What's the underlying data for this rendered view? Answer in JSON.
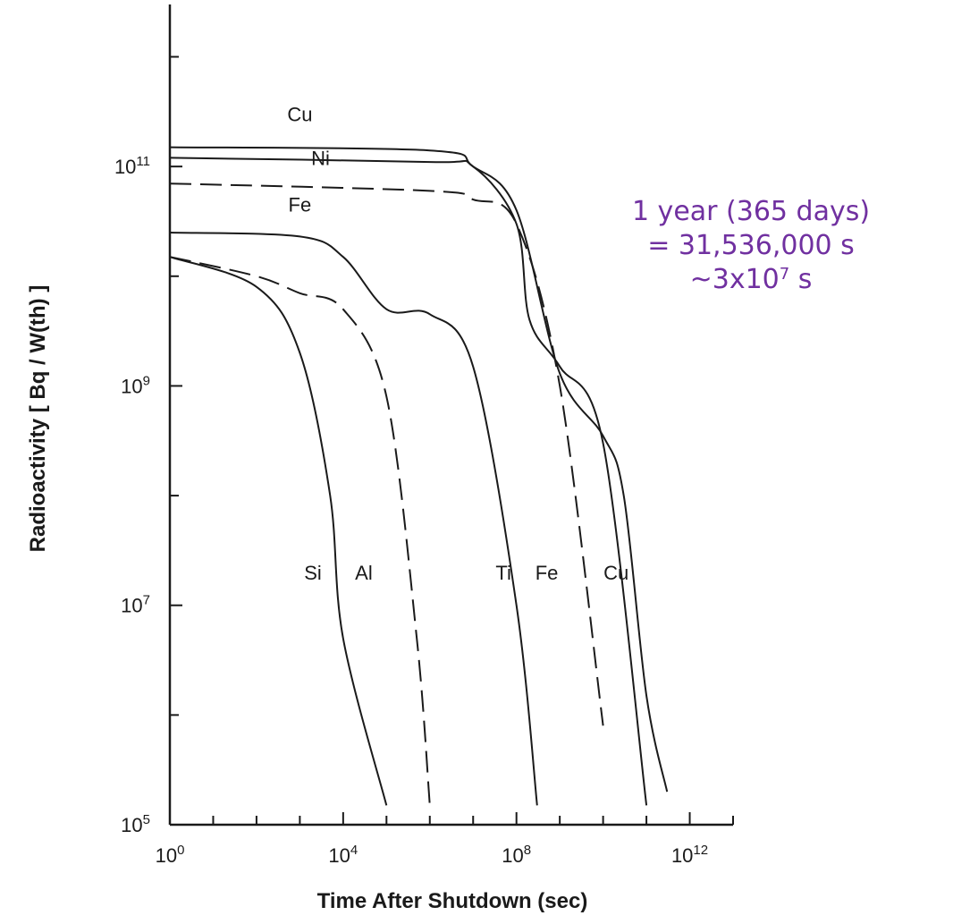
{
  "chart_data": {
    "type": "line",
    "xlabel": "Time After Shutdown (sec)",
    "ylabel": "Radioactivity [ Bq / W(th) ]",
    "x_scale": "log",
    "y_scale": "log",
    "xlim": [
      1,
      10000000000000
    ],
    "ylim": [
      100000,
      3000000000000
    ],
    "x_ticks": [
      {
        "value": 1,
        "label": "10",
        "exp": "0"
      },
      {
        "value": 10000,
        "label": "10",
        "exp": "4"
      },
      {
        "value": 100000000,
        "label": "10",
        "exp": "8"
      },
      {
        "value": 1000000000000,
        "label": "10",
        "exp": "12"
      }
    ],
    "y_ticks": [
      {
        "value": 100000,
        "label": "10",
        "exp": "5"
      },
      {
        "value": 10000000,
        "label": "10",
        "exp": "7"
      },
      {
        "value": 1000000000,
        "label": "10",
        "exp": "9"
      },
      {
        "value": 100000000000,
        "label": "10",
        "exp": "11"
      }
    ],
    "grid": false,
    "legend": "inline labels on curves",
    "series": [
      {
        "name": "Cu",
        "style": "solid",
        "x": [
          1,
          1000000,
          10000000,
          100000000,
          1000000000,
          10000000000,
          30000000000,
          100000000000,
          300000000000
        ],
        "y": [
          150000000000,
          140000000000,
          100000000000,
          40000000000,
          1300000000,
          350000000,
          100000000,
          1500000,
          200000
        ]
      },
      {
        "name": "Ni",
        "style": "solid",
        "x": [
          1,
          1000000,
          10000000,
          100000000,
          200000000,
          1000000000,
          10000000000,
          100000000000
        ],
        "y": [
          120000000000,
          110000000000,
          100000000000,
          30000000000,
          4000000000,
          1500000000,
          300000000,
          150000
        ]
      },
      {
        "name": "Fe",
        "style": "dashed",
        "x": [
          1,
          1000000,
          10000000,
          100000000,
          1000000000,
          10000000000
        ],
        "y": [
          70000000000,
          60000000000,
          50000000000,
          30000000000,
          1000000000,
          800000
        ]
      },
      {
        "name": "Ti",
        "style": "solid",
        "x": [
          1,
          1000,
          10000,
          100000,
          1000000,
          10000000,
          100000000,
          300000000
        ],
        "y": [
          25000000000,
          23000000000,
          15000000000,
          5000000000,
          4500000000,
          1500000000,
          10000000,
          150000
        ]
      },
      {
        "name": "Al",
        "style": "dashed",
        "x": [
          1,
          100,
          1000,
          10000,
          100000,
          500000,
          1000000
        ],
        "y": [
          15000000000,
          10000000000,
          7000000000,
          5000000000,
          800000000,
          5000000,
          150000
        ]
      },
      {
        "name": "Si",
        "style": "solid",
        "x": [
          1,
          100,
          1000,
          5000,
          10000,
          100000
        ],
        "y": [
          15000000000,
          8000000000,
          2000000000,
          100000000,
          5000000,
          150000
        ]
      }
    ],
    "labels": [
      {
        "text": "Cu",
        "x": 1000,
        "y": 300000000000
      },
      {
        "text": "Ni",
        "x": 3000,
        "y": 120000000000
      },
      {
        "text": "Fe",
        "x": 1000,
        "y": 45000000000
      },
      {
        "text": "Si",
        "x": 2000,
        "y": 20000000
      },
      {
        "text": "Al",
        "x": 30000,
        "y": 20000000
      },
      {
        "text": "Ti",
        "x": 50000000,
        "y": 20000000
      },
      {
        "text": "Fe",
        "x": 500000000,
        "y": 20000000
      },
      {
        "text": "Cu",
        "x": 20000000000,
        "y": 20000000
      }
    ]
  },
  "annotation": {
    "line1": "1 year (365 days)",
    "line2": "= 31,536,000 s",
    "line3_prefix": "~3x10",
    "line3_exp": "7",
    "line3_suffix": " s",
    "color": "#7030a0"
  }
}
